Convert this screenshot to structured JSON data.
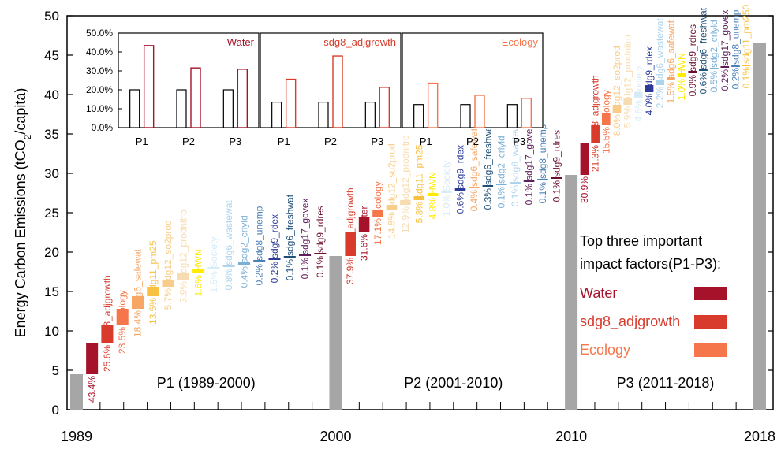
{
  "chart_data": [
    {
      "type": "waterfall",
      "ylabel": "Energy Carbon Emissions (tCO",
      "ylabel_sub": "2",
      "ylabel_tail": "/capita)",
      "ylim": [
        0,
        50
      ],
      "yticks": [
        "0",
        "5",
        "10",
        "15",
        "20",
        "25",
        "30",
        "35",
        "40",
        "45",
        "50"
      ],
      "xticks": [
        {
          "label": "1989",
          "year": 1989
        },
        {
          "label": "2000",
          "year": 2000
        },
        {
          "label": "2010",
          "year": 2010
        },
        {
          "label": "2018",
          "year": 2018
        }
      ],
      "totals": [
        {
          "year": 1989,
          "value": 4.5
        },
        {
          "year": 2000,
          "value": 19.5
        },
        {
          "year": 2010,
          "value": 29.8
        },
        {
          "year": 2018,
          "value": 46.5
        }
      ],
      "periods": [
        {
          "label": "P1 (1989-2000)",
          "start": 4.5,
          "factors": [
            {
              "name": "Water",
              "share": "43.4%",
              "delta": 3.9,
              "color": "#a5122a"
            },
            {
              "name": "sdg8_adjgrowth",
              "share": "25.6%",
              "delta": 2.3,
              "color": "#d83b2b"
            },
            {
              "name": "Ecology",
              "share": "23.5%",
              "delta": 2.1,
              "color": "#f4764a"
            },
            {
              "name": "sdg6_safewat",
              "share": "18.4%",
              "delta": 1.6,
              "color": "#f7a665"
            },
            {
              "name": "sdg11_pm25",
              "share": "13.5%",
              "delta": 1.2,
              "color": "#f9c142"
            },
            {
              "name": "sdg12_so2prod",
              "share": "5.7%",
              "delta": 0.9,
              "color": "#f8cd8a"
            },
            {
              "name": "sdg12_prodnitro",
              "share": "3.9%",
              "delta": 0.8,
              "color": "#f7dcb2"
            },
            {
              "name": "HWN",
              "share": "1.6%",
              "delta": 0.5,
              "color": "#ffea00"
            },
            {
              "name": "Society",
              "share": "1.5%",
              "delta": 0.3,
              "color": "#d6ebf8"
            },
            {
              "name": "sdg6_wastewat",
              "share": "0.8%",
              "delta": 0.3,
              "color": "#aed4ec"
            },
            {
              "name": "sdg2_crlyld",
              "share": "0.4%",
              "delta": 0.3,
              "color": "#7aafd6"
            },
            {
              "name": "sdg8_unemp",
              "share": "0.2%",
              "delta": 0.3,
              "color": "#4a7fb8"
            },
            {
              "name": "sdg9_rdex",
              "share": "0.2%",
              "delta": 0.3,
              "color": "#2c3b96"
            },
            {
              "name": "sdg6_freshwat",
              "share": "0.1%",
              "delta": 0.2,
              "color": "#1f4e79"
            },
            {
              "name": "sdg17_govex",
              "share": "0.1%",
              "delta": 0.2,
              "color": "#5d1e5a"
            },
            {
              "name": "sdg9_rdres",
              "share": "0.1%",
              "delta": 0.2,
              "color": "#6b0f2e"
            }
          ]
        },
        {
          "label": "P2 (2001-2010)",
          "start": 19.5,
          "factors": [
            {
              "name": "sdg8_adjgrowth",
              "share": "37.9%",
              "delta": 3.0,
              "color": "#d83b2b"
            },
            {
              "name": "Water",
              "share": "31.6%",
              "delta": 2.0,
              "color": "#a5122a"
            },
            {
              "name": "Ecology",
              "share": "17.1%",
              "delta": 0.8,
              "color": "#f4764a"
            },
            {
              "name": "sdg12_so2prod",
              "share": "14.8%",
              "delta": 0.7,
              "color": "#f8cd8a"
            },
            {
              "name": "sdg12_prodnitro",
              "share": "12.9%",
              "delta": 0.6,
              "color": "#f7dcb2"
            },
            {
              "name": "sdg11_pm25",
              "share": "5.8%",
              "delta": 0.5,
              "color": "#f9c142"
            },
            {
              "name": "HWN",
              "share": "4.8%",
              "delta": 0.4,
              "color": "#ffea00"
            },
            {
              "name": "Society",
              "share": "1.0%",
              "delta": 0.3,
              "color": "#d6ebf8"
            },
            {
              "name": "sdg9_rdex",
              "share": "0.6%",
              "delta": 0.3,
              "color": "#2c3b96"
            },
            {
              "name": "sdg6_safewat",
              "share": "0.4%",
              "delta": 0.2,
              "color": "#f7a665"
            },
            {
              "name": "sdg6_freshwat",
              "share": "0.3%",
              "delta": 0.2,
              "color": "#1f4e79"
            },
            {
              "name": "sdg2_crlyld",
              "share": "0.1%",
              "delta": 0.2,
              "color": "#7aafd6"
            },
            {
              "name": "sdg6_wastewat",
              "share": "0.1%",
              "delta": 0.2,
              "color": "#aed4ec"
            },
            {
              "name": "sdg17_govex",
              "share": "0.1%",
              "delta": 0.2,
              "color": "#5d1e5a"
            },
            {
              "name": "sdg8_unemp",
              "share": "0.1%",
              "delta": 0.2,
              "color": "#4a7fb8"
            },
            {
              "name": "sdg9_rdres",
              "share": "0.1%",
              "delta": 0.2,
              "color": "#6b0f2e"
            }
          ]
        },
        {
          "label": "P3 (2011-2018)",
          "start": 29.8,
          "factors": [
            {
              "name": "Water",
              "share": "30.9%",
              "delta": 4.0,
              "color": "#a5122a"
            },
            {
              "name": "sdg8_adjgrowth",
              "share": "21.3%",
              "delta": 2.3,
              "color": "#d83b2b"
            },
            {
              "name": "Ecology",
              "share": "15.5%",
              "delta": 1.6,
              "color": "#f4764a"
            },
            {
              "name": "sdg12_so2prod",
              "share": "8.0%",
              "delta": 1.0,
              "color": "#f8cd8a"
            },
            {
              "name": "sdg12_prodnitro",
              "share": "5.9%",
              "delta": 0.8,
              "color": "#f7dcb2"
            },
            {
              "name": "Society",
              "share": "4.6%",
              "delta": 0.8,
              "color": "#d6ebf8"
            },
            {
              "name": "sdg9_rdex",
              "share": "4.0%",
              "delta": 0.9,
              "color": "#2c3b96"
            },
            {
              "name": "sdg6_wastewat",
              "share": "2.2%",
              "delta": 0.6,
              "color": "#aed4ec"
            },
            {
              "name": "sdg6_safewat",
              "share": "1.5%",
              "delta": 0.4,
              "color": "#f7a665"
            },
            {
              "name": "HWN",
              "share": "1.0%",
              "delta": 0.5,
              "color": "#ffea00"
            },
            {
              "name": "sdg9_rdres",
              "share": "0.9%",
              "delta": 0.3,
              "color": "#6b0f2e"
            },
            {
              "name": "sdg6_freshwat",
              "share": "0.6%",
              "delta": 0.2,
              "color": "#1f4e79"
            },
            {
              "name": "sdg2_crlyld",
              "share": "0.5%",
              "delta": 0.2,
              "color": "#7aafd6"
            },
            {
              "name": "sdg17_govex",
              "share": "0.2%",
              "delta": 0.2,
              "color": "#5d1e5a"
            },
            {
              "name": "sdg8_unemp",
              "share": "0.2%",
              "delta": 0.1,
              "color": "#4a7fb8"
            },
            {
              "name": "sdg11_pm250",
              "share": "0.1%",
              "delta": 0.1,
              "color": "#f9c142"
            }
          ]
        }
      ],
      "legend": {
        "title_line1": "Top three important",
        "title_line2": "impact factors(P1-P3):",
        "items": [
          {
            "name": "Water",
            "color": "#a5122a"
          },
          {
            "name": "sdg8_adjgrowth",
            "color": "#d83b2b"
          },
          {
            "name": "Ecology",
            "color": "#f4764a"
          }
        ]
      },
      "total_bar_color": "#a6a6a6"
    },
    {
      "type": "bar",
      "role": "inset",
      "yticks": [
        "0.0%",
        "10.0%",
        "20.0%",
        "30.0%",
        "40.0%",
        "50.0%"
      ],
      "ylim": [
        0,
        50
      ],
      "categories": [
        "P1",
        "P2",
        "P3"
      ],
      "panels": [
        {
          "name": "Water",
          "color": "#a5122a",
          "values": [
            43.4,
            31.6,
            30.9
          ],
          "reference": [
            20,
            20,
            20
          ]
        },
        {
          "name": "sdg8_adjgrowth",
          "color": "#d83b2b",
          "values": [
            25.6,
            37.9,
            21.3
          ],
          "reference": [
            13.5,
            13.5,
            13.5
          ]
        },
        {
          "name": "Ecology",
          "color": "#f4764a",
          "values": [
            23.5,
            17.1,
            15.5
          ],
          "reference": [
            12.2,
            12.2,
            12.2
          ]
        }
      ]
    }
  ]
}
